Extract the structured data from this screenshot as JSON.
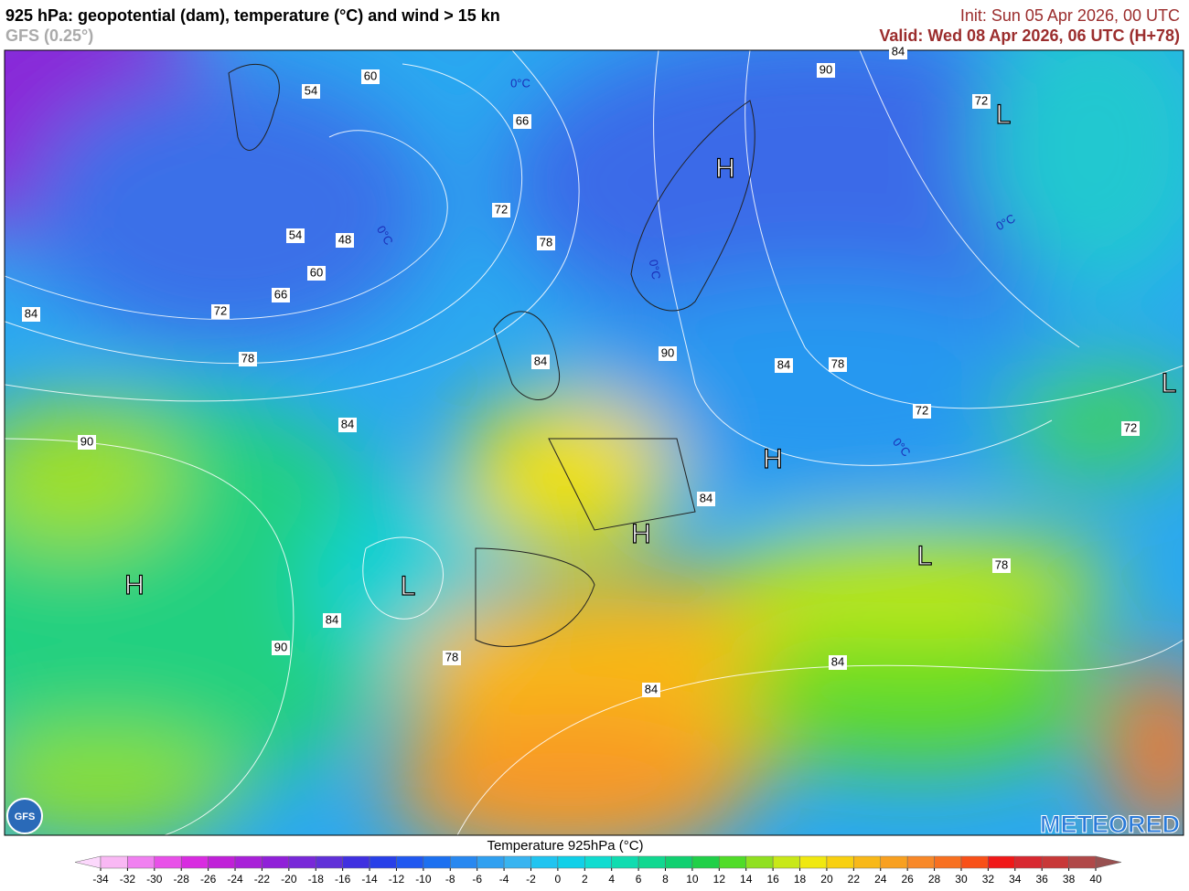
{
  "header": {
    "title": "925 hPa: geopotential (dam), temperature (°C) and wind > 15 kn",
    "model": "GFS (0.25°)",
    "init": "Init: Sun 05 Apr 2026, 00 UTC",
    "valid": "Valid: Wed 08 Apr 2026, 06 UTC (H+78)"
  },
  "map": {
    "contour_labels": [
      60,
      54,
      66,
      90,
      84,
      72,
      72,
      78,
      54,
      48,
      60,
      66,
      72,
      84,
      78,
      84,
      90,
      84,
      78,
      72,
      72,
      84,
      90,
      84,
      84,
      90,
      78,
      84,
      84,
      78
    ],
    "isotherm_label": "0°C",
    "centers": [
      "H",
      "H",
      "H",
      "H",
      "L",
      "L",
      "L",
      "L"
    ],
    "logo_left": "GFS",
    "logo_right": "METEORED"
  },
  "colorbar": {
    "title": "Temperature 925hPa (°C)",
    "ticks": [
      -34,
      -32,
      -30,
      -28,
      -26,
      -24,
      -22,
      -20,
      -18,
      -16,
      -14,
      -12,
      -10,
      -8,
      -6,
      -4,
      -2,
      0,
      2,
      4,
      6,
      8,
      10,
      12,
      14,
      16,
      18,
      20,
      22,
      24,
      26,
      28,
      30,
      32,
      34,
      36,
      38,
      40
    ],
    "colors": [
      "#f9b8f4",
      "#f080f0",
      "#e850e8",
      "#d82ce0",
      "#c020d8",
      "#a820d8",
      "#9020d8",
      "#7828d8",
      "#6030d8",
      "#4030e0",
      "#2840e8",
      "#2058f0",
      "#1c70f0",
      "#2888f0",
      "#30a0f0",
      "#38b4f0",
      "#20c4f0",
      "#10d0e8",
      "#10dcd0",
      "#10dcb0",
      "#10d890",
      "#10d070",
      "#20d048",
      "#50dc28",
      "#90e020",
      "#c8e818",
      "#f0e810",
      "#f8d010",
      "#f8b818",
      "#f8a020",
      "#f88828",
      "#f87020",
      "#f85018",
      "#f01818",
      "#d82830",
      "#c83838",
      "#b04848"
    ],
    "under_color": "#fcd8fc",
    "over_color": "#985050"
  }
}
